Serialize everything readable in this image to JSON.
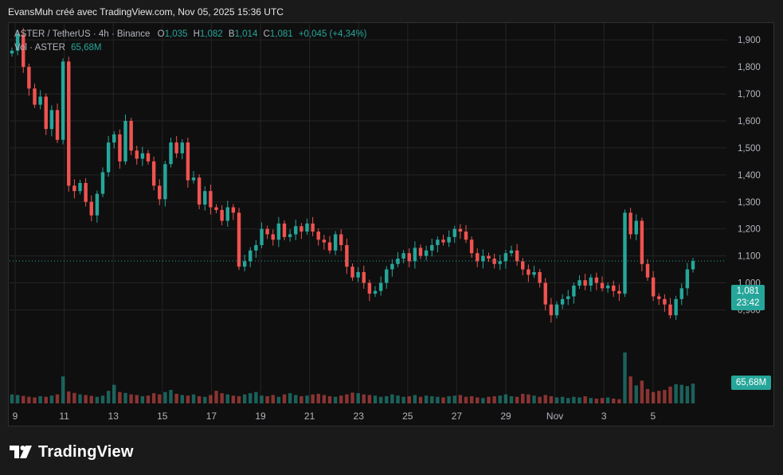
{
  "header": {
    "caption": "EvansMuh créé avec TradingView.com, Nov 05, 2025 15:36 UTC"
  },
  "legend": {
    "symbol": "ASTER / TetherUS · 4h · Binance",
    "o_label": "O",
    "o_value": "1,035",
    "h_label": "H",
    "h_value": "1,082",
    "l_label": "B",
    "l_value": "1,014",
    "c_label": "C",
    "c_value": "1,081",
    "change": "+0,045 (+4,34%)",
    "vol_label": "Vol · ASTER",
    "vol_value": "65,68M"
  },
  "badges": {
    "last_price": "1,081",
    "countdown": "23:42",
    "volume": "65,68M"
  },
  "brand": {
    "name": "TradingView"
  },
  "colors": {
    "up": "#26a69a",
    "down": "#ef5350",
    "grid": "#242424",
    "background": "#0f0f0f"
  },
  "chart_data": {
    "type": "candlestick",
    "interval": "4h",
    "y_axis": {
      "ticks": [
        "0,900",
        "1,000",
        "1,100",
        "1,200",
        "1,300",
        "1,400",
        "1,500",
        "1,600",
        "1,700",
        "1,800",
        "1,900"
      ],
      "tick_values": [
        0.9,
        1.0,
        1.1,
        1.2,
        1.3,
        1.4,
        1.5,
        1.6,
        1.7,
        1.8,
        1.9
      ],
      "range": [
        0.81,
        1.93
      ]
    },
    "x_axis": {
      "ticks": [
        "9",
        "11",
        "13",
        "15",
        "17",
        "19",
        "21",
        "23",
        "25",
        "27",
        "29",
        "Nov",
        "3",
        "5"
      ]
    },
    "last_price": 1.081,
    "closes": [
      1.86,
      1.92,
      1.8,
      1.72,
      1.66,
      1.69,
      1.57,
      1.64,
      1.53,
      1.82,
      1.36,
      1.34,
      1.37,
      1.3,
      1.25,
      1.33,
      1.41,
      1.52,
      1.55,
      1.45,
      1.6,
      1.49,
      1.46,
      1.48,
      1.45,
      1.36,
      1.31,
      1.44,
      1.52,
      1.48,
      1.52,
      1.38,
      1.39,
      1.29,
      1.34,
      1.28,
      1.27,
      1.23,
      1.28,
      1.26,
      1.06,
      1.08,
      1.12,
      1.14,
      1.2,
      1.18,
      1.16,
      1.22,
      1.17,
      1.18,
      1.21,
      1.19,
      1.22,
      1.19,
      1.16,
      1.15,
      1.12,
      1.18,
      1.14,
      1.06,
      1.02,
      1.04,
      1.0,
      0.96,
      0.97,
      1.0,
      1.05,
      1.07,
      1.09,
      1.11,
      1.08,
      1.13,
      1.1,
      1.12,
      1.14,
      1.16,
      1.15,
      1.17,
      1.2,
      1.19,
      1.16,
      1.11,
      1.08,
      1.1,
      1.09,
      1.07,
      1.08,
      1.11,
      1.12,
      1.08,
      1.05,
      1.03,
      1.04,
      1.0,
      0.92,
      0.88,
      0.92,
      0.94,
      0.95,
      0.99,
      1.01,
      0.99,
      1.02,
      1.0,
      0.98,
      0.99,
      0.97,
      0.96,
      1.26,
      1.18,
      1.23,
      1.07,
      1.02,
      0.95,
      0.94,
      0.92,
      0.88,
      0.94,
      0.98,
      1.05,
      1.081
    ],
    "volumes_millions": [
      30,
      28,
      25,
      22,
      20,
      24,
      22,
      26,
      30,
      90,
      40,
      35,
      30,
      28,
      25,
      22,
      26,
      42,
      62,
      38,
      35,
      30,
      28,
      24,
      26,
      34,
      30,
      38,
      45,
      32,
      28,
      26,
      30,
      24,
      22,
      28,
      42,
      34,
      30,
      26,
      24,
      30,
      34,
      38,
      26,
      24,
      28,
      22,
      30,
      34,
      28,
      24,
      26,
      30,
      32,
      28,
      24,
      22,
      26,
      30,
      36,
      34,
      30,
      28,
      26,
      22,
      24,
      30,
      26,
      22,
      24,
      28,
      22,
      26,
      24,
      22,
      20,
      24,
      26,
      28,
      22,
      24,
      20,
      18,
      22,
      24,
      26,
      30,
      24,
      22,
      32,
      30,
      26,
      22,
      28,
      24,
      20,
      22,
      18,
      22,
      20,
      24,
      18,
      16,
      18,
      20,
      16,
      14,
      170,
      90,
      60,
      76,
      48,
      38,
      42,
      45,
      56,
      64,
      62,
      58,
      66
    ]
  }
}
